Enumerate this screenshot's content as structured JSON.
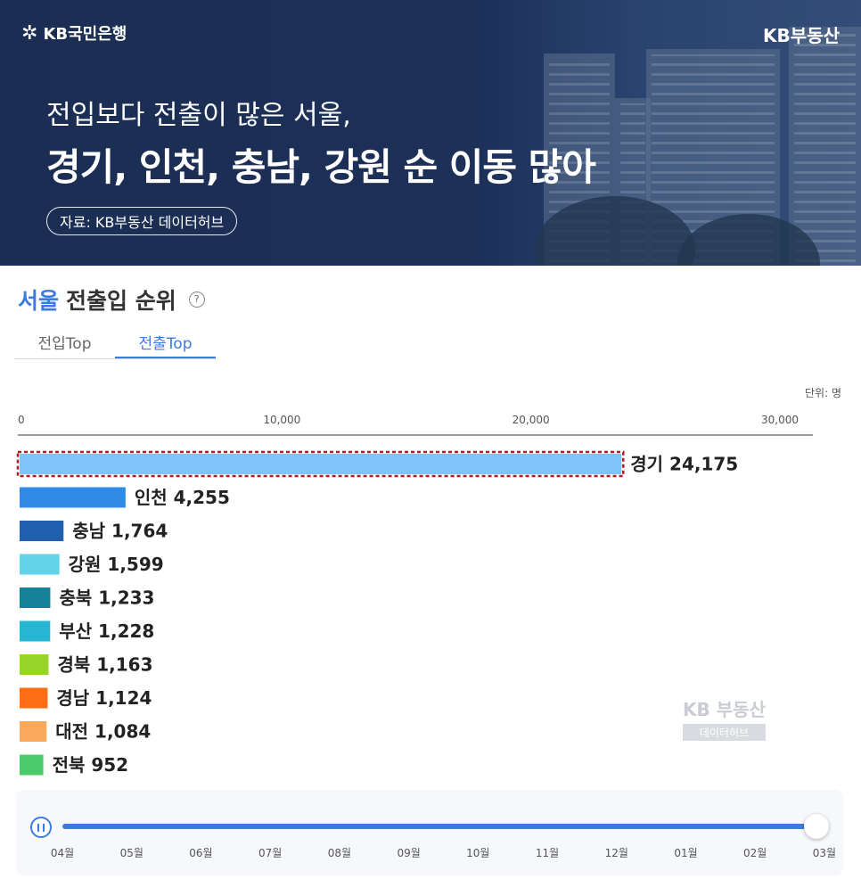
{
  "header": {
    "bank_name": "KB국민은행",
    "brand_right": "KB부동산",
    "headline1": "전입보다 전출이 많은 서울,",
    "headline2": "경기, 인천, 충남, 강원 순 이동 많아",
    "source": "자료: KB부동산 데이터허브"
  },
  "section": {
    "region": "서울",
    "title": "전출입 순위",
    "help_symbol": "?"
  },
  "tabs": [
    {
      "label": "전입Top",
      "active": false
    },
    {
      "label": "전출Top",
      "active": true
    }
  ],
  "unit_label": "단위: 명",
  "watermark": {
    "line1": "KB 부동산",
    "line2": "데이터허브"
  },
  "chart_data": {
    "type": "bar",
    "orientation": "horizontal",
    "xlim": [
      0,
      32000
    ],
    "ticks": [
      0,
      10000,
      20000,
      30000
    ],
    "tick_labels": [
      "0",
      "10,000",
      "20,000",
      "30,000"
    ],
    "categories": [
      "경기",
      "인천",
      "충남",
      "강원",
      "충북",
      "부산",
      "경북",
      "경남",
      "대전",
      "전북"
    ],
    "values": [
      24175,
      4255,
      1764,
      1599,
      1233,
      1228,
      1163,
      1124,
      1084,
      952
    ],
    "value_labels": [
      "24,175",
      "4,255",
      "1,764",
      "1,599",
      "1,233",
      "1,228",
      "1,163",
      "1,124",
      "1,084",
      "952"
    ],
    "colors": [
      "#7fc4fb",
      "#2f8be6",
      "#1f5fae",
      "#62d3e9",
      "#16839a",
      "#26b6d3",
      "#96d62b",
      "#fb6e14",
      "#fba95a",
      "#4ccb6a"
    ],
    "highlight_index": 0,
    "highlight_color": "#b01e23"
  },
  "timeline": {
    "months": [
      "04월",
      "05월",
      "06월",
      "07월",
      "08월",
      "09월",
      "10월",
      "11월",
      "12월",
      "01월",
      "02월",
      "03월"
    ],
    "current_index": 11,
    "progress": 1.0
  },
  "colors": {
    "accent": "#3d7be0",
    "header_bg": "#1c2f56"
  }
}
